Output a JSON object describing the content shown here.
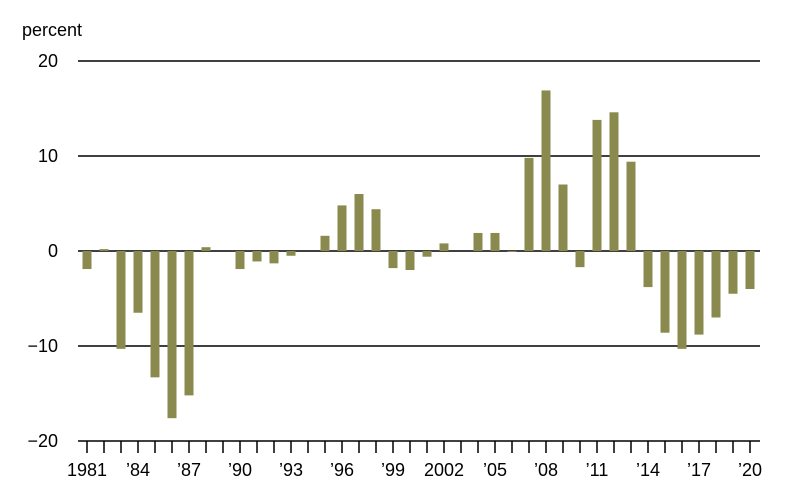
{
  "chart_data": {
    "type": "bar",
    "ylabel": "percent",
    "ylim": [
      -20,
      20
    ],
    "yticks": [
      20,
      10,
      0,
      -10,
      -20
    ],
    "ytick_labels": [
      "20",
      "10",
      "0",
      "−10",
      "−20"
    ],
    "grid": true,
    "bar_color": "#8a8a4e",
    "years": [
      1981,
      1982,
      1983,
      1984,
      1985,
      1986,
      1987,
      1988,
      1989,
      1990,
      1991,
      1992,
      1993,
      1994,
      1995,
      1996,
      1997,
      1998,
      1999,
      2000,
      2001,
      2002,
      2003,
      2004,
      2005,
      2006,
      2007,
      2008,
      2009,
      2010,
      2011,
      2012,
      2013,
      2014,
      2015,
      2016,
      2017,
      2018,
      2019,
      2020
    ],
    "values": [
      -1.9,
      0.2,
      -10.3,
      -6.5,
      -13.3,
      -17.6,
      -15.2,
      0.4,
      0.0,
      -1.9,
      -1.1,
      -1.3,
      -0.5,
      0.0,
      1.6,
      4.8,
      6.0,
      4.4,
      -1.8,
      -2.0,
      -0.6,
      0.8,
      0.0,
      1.9,
      1.9,
      -0.1,
      9.8,
      16.9,
      7.0,
      -1.7,
      13.8,
      14.6,
      9.4,
      -3.8,
      -8.6,
      -10.3,
      -8.8,
      -7.0,
      -4.5,
      -4.0
    ],
    "xtick_labels": [
      {
        "index": 0,
        "label": "1981"
      },
      {
        "index": 3,
        "label": "’84"
      },
      {
        "index": 6,
        "label": "’87"
      },
      {
        "index": 9,
        "label": "’90"
      },
      {
        "index": 12,
        "label": "’93"
      },
      {
        "index": 15,
        "label": "’96"
      },
      {
        "index": 18,
        "label": "’99"
      },
      {
        "index": 21,
        "label": "2002"
      },
      {
        "index": 24,
        "label": "’05"
      },
      {
        "index": 27,
        "label": "’08"
      },
      {
        "index": 30,
        "label": "’11"
      },
      {
        "index": 33,
        "label": "’14"
      },
      {
        "index": 36,
        "label": "’17"
      },
      {
        "index": 39,
        "label": "’20"
      }
    ]
  }
}
